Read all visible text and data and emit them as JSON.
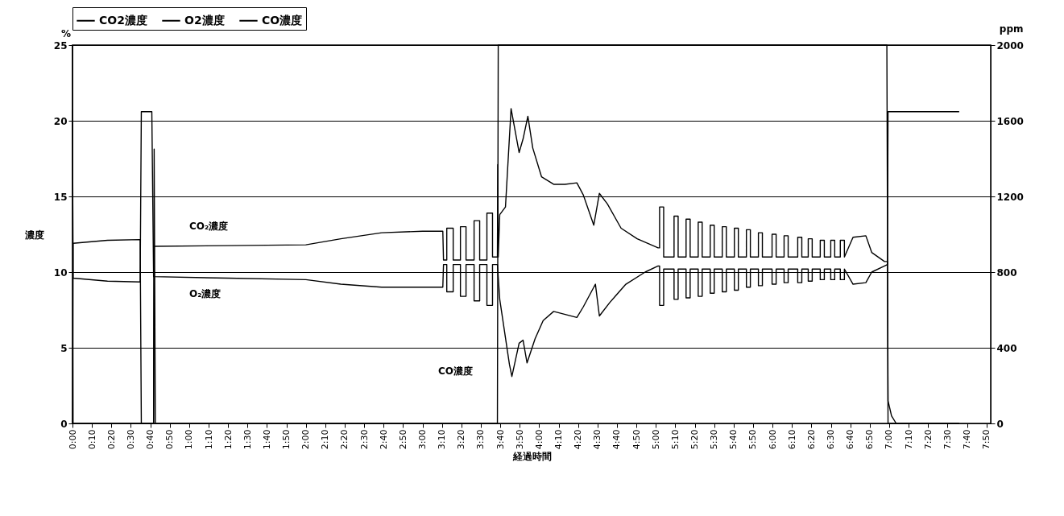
{
  "chart_data": {
    "type": "line",
    "xlabel": "経過時間",
    "ylabel": "濃度",
    "y2label": "ppm",
    "annotations": [
      "%",
      "CO₂濃度",
      "O₂濃度",
      "CO濃度"
    ],
    "xlim": [
      0,
      7.87
    ],
    "xticks": [
      {
        "value": 0,
        "label": "0:00"
      },
      {
        "value": 0.1667,
        "label": "0:10"
      },
      {
        "value": 0.3333,
        "label": "0:20"
      },
      {
        "value": 0.5,
        "label": "0:30"
      },
      {
        "value": 0.6667,
        "label": "0:40"
      },
      {
        "value": 0.8333,
        "label": "0:50"
      },
      {
        "value": 1,
        "label": "1:00"
      },
      {
        "value": 1.1667,
        "label": "1:10"
      },
      {
        "value": 1.3333,
        "label": "1:20"
      },
      {
        "value": 1.5,
        "label": "1:30"
      },
      {
        "value": 1.6667,
        "label": "1:40"
      },
      {
        "value": 1.8333,
        "label": "1:50"
      },
      {
        "value": 2,
        "label": "2:00"
      },
      {
        "value": 2.1667,
        "label": "2:10"
      },
      {
        "value": 2.3333,
        "label": "2:20"
      },
      {
        "value": 2.5,
        "label": "2:30"
      },
      {
        "value": 2.6667,
        "label": "2:40"
      },
      {
        "value": 2.8333,
        "label": "2:50"
      },
      {
        "value": 3,
        "label": "3:00"
      },
      {
        "value": 3.1667,
        "label": "3:10"
      },
      {
        "value": 3.3333,
        "label": "3:20"
      },
      {
        "value": 3.5,
        "label": "3:30"
      },
      {
        "value": 3.6667,
        "label": "3:40"
      },
      {
        "value": 3.8333,
        "label": "3:50"
      },
      {
        "value": 4,
        "label": "4:00"
      },
      {
        "value": 4.1667,
        "label": "4:10"
      },
      {
        "value": 4.3333,
        "label": "4:20"
      },
      {
        "value": 4.5,
        "label": "4:30"
      },
      {
        "value": 4.6667,
        "label": "4:40"
      },
      {
        "value": 4.8333,
        "label": "4:50"
      },
      {
        "value": 5,
        "label": "5:00"
      },
      {
        "value": 5.1667,
        "label": "5:10"
      },
      {
        "value": 5.3333,
        "label": "5:20"
      },
      {
        "value": 5.5,
        "label": "5:30"
      },
      {
        "value": 5.6667,
        "label": "5:40"
      },
      {
        "value": 5.8333,
        "label": "5:50"
      },
      {
        "value": 6,
        "label": "6:00"
      },
      {
        "value": 6.1667,
        "label": "6:10"
      },
      {
        "value": 6.3333,
        "label": "6:20"
      },
      {
        "value": 6.5,
        "label": "6:30"
      },
      {
        "value": 6.6667,
        "label": "6:40"
      },
      {
        "value": 6.8333,
        "label": "6:50"
      },
      {
        "value": 7,
        "label": "7:00"
      },
      {
        "value": 7.1667,
        "label": "7:10"
      },
      {
        "value": 7.3333,
        "label": "7:20"
      },
      {
        "value": 7.5,
        "label": "7:30"
      },
      {
        "value": 7.6667,
        "label": "7:40"
      },
      {
        "value": 7.8333,
        "label": "7:50"
      }
    ],
    "ylim": [
      0,
      25
    ],
    "yticks": [
      0,
      5,
      10,
      15,
      20,
      25
    ],
    "y2lim": [
      0,
      2000
    ],
    "y2ticks": [
      0,
      400,
      800,
      1200,
      1600,
      2000
    ],
    "grid": "y",
    "legend": "top",
    "series": [
      {
        "name": "CO2濃度",
        "color": "#000000",
        "x": [
          0,
          0.005,
          0.3,
          0.58,
          0.59,
          0.695,
          0.7,
          1.33,
          2.0,
          2.3,
          2.65,
          3.0,
          3.174,
          3.18,
          3.208,
          3.208,
          3.263,
          3.263,
          3.325,
          3.325,
          3.373,
          3.373,
          3.442,
          3.442,
          3.49,
          3.49,
          3.552,
          3.552,
          3.6,
          3.6,
          3.642,
          3.645,
          3.649,
          3.662,
          3.711,
          3.759,
          3.828,
          3.862,
          3.903,
          3.945,
          4.02,
          4.124,
          4.22,
          4.323,
          4.378,
          4.468,
          4.516,
          4.585,
          4.702,
          4.84,
          5.019,
          5.032,
          5.032,
          5.067,
          5.067,
          5.156,
          5.156,
          5.191,
          5.191,
          5.259,
          5.259,
          5.294,
          5.294,
          5.363,
          5.363,
          5.397,
          5.397,
          5.466,
          5.466,
          5.5,
          5.5,
          5.569,
          5.569,
          5.604,
          5.604,
          5.673,
          5.673,
          5.707,
          5.707,
          5.776,
          5.776,
          5.81,
          5.81,
          5.879,
          5.879,
          5.913,
          5.913,
          5.996,
          5.996,
          6.031,
          6.031,
          6.099,
          6.099,
          6.134,
          6.134,
          6.216,
          6.216,
          6.251,
          6.251,
          6.306,
          6.306,
          6.34,
          6.34,
          6.409,
          6.409,
          6.444,
          6.444,
          6.499,
          6.499,
          6.533,
          6.533,
          6.581,
          6.581,
          6.616,
          6.616,
          6.69,
          6.8,
          6.85,
          6.96,
          6.985,
          6.99,
          7.6
        ],
        "values": [
          0,
          11.9,
          12.1,
          12.15,
          0,
          0,
          11.7,
          11.75,
          11.8,
          12.2,
          12.6,
          12.7,
          12.7,
          10.8,
          10.8,
          12.9,
          12.9,
          10.8,
          10.8,
          13.0,
          13.0,
          10.8,
          10.8,
          13.4,
          13.4,
          10.8,
          10.8,
          13.9,
          13.9,
          11.0,
          11.0,
          17.1,
          11.0,
          13.8,
          14.3,
          20.8,
          17.9,
          18.8,
          20.3,
          18.2,
          16.3,
          15.8,
          15.8,
          15.9,
          15.1,
          13.1,
          15.2,
          14.5,
          12.9,
          12.2,
          11.6,
          11.6,
          14.3,
          14.3,
          11.0,
          11.0,
          13.7,
          13.7,
          11.0,
          11.0,
          13.5,
          13.5,
          11.0,
          11.0,
          13.3,
          13.3,
          11.0,
          11.0,
          13.1,
          13.1,
          11.0,
          11.0,
          13.0,
          13.0,
          11.0,
          11.0,
          12.9,
          12.9,
          11.0,
          11.0,
          12.8,
          12.8,
          11.0,
          11.0,
          12.6,
          12.6,
          11.0,
          11.0,
          12.5,
          12.5,
          11.0,
          11.0,
          12.4,
          12.4,
          11.0,
          11.0,
          12.3,
          12.3,
          11.0,
          11.0,
          12.2,
          12.2,
          11.0,
          11.0,
          12.1,
          12.1,
          11.0,
          11.0,
          12.1,
          12.1,
          11.0,
          11.0,
          12.1,
          12.1,
          11.0,
          12.3,
          12.4,
          11.3,
          10.7,
          10.7,
          0,
          0
        ]
      },
      {
        "name": "O2濃度",
        "color": "#000000",
        "x": [
          0,
          0.005,
          0.3,
          0.58,
          0.59,
          0.68,
          0.695,
          1.33,
          2.0,
          2.3,
          2.65,
          3.0,
          3.174,
          3.18,
          3.208,
          3.208,
          3.263,
          3.263,
          3.325,
          3.325,
          3.373,
          3.373,
          3.442,
          3.442,
          3.49,
          3.49,
          3.552,
          3.552,
          3.6,
          3.6,
          3.642,
          3.662,
          3.745,
          3.766,
          3.828,
          3.862,
          3.896,
          3.965,
          4.034,
          4.124,
          4.323,
          4.378,
          4.482,
          4.516,
          4.606,
          4.743,
          4.908,
          5.019,
          5.032,
          5.032,
          5.067,
          5.067,
          5.156,
          5.156,
          5.191,
          5.191,
          5.259,
          5.259,
          5.294,
          5.294,
          5.363,
          5.363,
          5.397,
          5.397,
          5.466,
          5.466,
          5.5,
          5.5,
          5.569,
          5.569,
          5.604,
          5.604,
          5.673,
          5.673,
          5.707,
          5.707,
          5.776,
          5.776,
          5.81,
          5.81,
          5.879,
          5.879,
          5.913,
          5.913,
          5.996,
          5.996,
          6.031,
          6.031,
          6.099,
          6.099,
          6.134,
          6.134,
          6.216,
          6.216,
          6.251,
          6.251,
          6.306,
          6.306,
          6.34,
          6.34,
          6.409,
          6.409,
          6.444,
          6.444,
          6.499,
          6.499,
          6.533,
          6.533,
          6.581,
          6.581,
          6.616,
          6.616,
          6.69,
          6.8,
          6.85,
          6.96,
          6.985,
          6.99,
          7.6
        ],
        "values": [
          20.7,
          9.6,
          9.4,
          9.35,
          20.6,
          20.6,
          9.7,
          9.6,
          9.5,
          9.2,
          9.0,
          9.0,
          9.0,
          10.5,
          10.5,
          8.7,
          8.7,
          10.5,
          10.5,
          8.4,
          8.4,
          10.5,
          10.5,
          8.1,
          8.1,
          10.5,
          10.5,
          7.8,
          7.8,
          10.5,
          10.5,
          8.2,
          3.9,
          3.1,
          5.3,
          5.5,
          4.0,
          5.6,
          6.8,
          7.4,
          7.0,
          7.7,
          9.2,
          7.1,
          8.0,
          9.2,
          10.0,
          10.4,
          10.4,
          7.8,
          7.8,
          10.2,
          10.2,
          8.2,
          8.2,
          10.2,
          10.2,
          8.3,
          8.3,
          10.2,
          10.2,
          8.4,
          8.4,
          10.2,
          10.2,
          8.6,
          8.6,
          10.2,
          10.2,
          8.7,
          8.7,
          10.2,
          10.2,
          8.8,
          8.8,
          10.2,
          10.2,
          9.0,
          9.0,
          10.2,
          10.2,
          9.1,
          9.1,
          10.2,
          10.2,
          9.2,
          9.2,
          10.2,
          10.2,
          9.3,
          9.3,
          10.2,
          10.2,
          9.3,
          9.3,
          10.2,
          10.2,
          9.4,
          9.4,
          10.2,
          10.2,
          9.5,
          9.5,
          10.2,
          10.2,
          9.5,
          9.5,
          10.2,
          10.2,
          9.5,
          9.5,
          10.2,
          9.2,
          9.3,
          10.0,
          10.4,
          10.5,
          20.6,
          20.6
        ]
      },
      {
        "name": "CO濃度",
        "color": "#000000",
        "axis": "y2",
        "x": [
          0,
          0.005,
          0.695,
          0.7,
          0.71,
          3.642,
          3.649,
          6.98,
          6.99,
          7.02,
          7.06,
          7.6
        ],
        "values": [
          2000,
          0,
          0,
          1450,
          0,
          0,
          2000,
          2000,
          120,
          40,
          0,
          0
        ]
      }
    ]
  }
}
